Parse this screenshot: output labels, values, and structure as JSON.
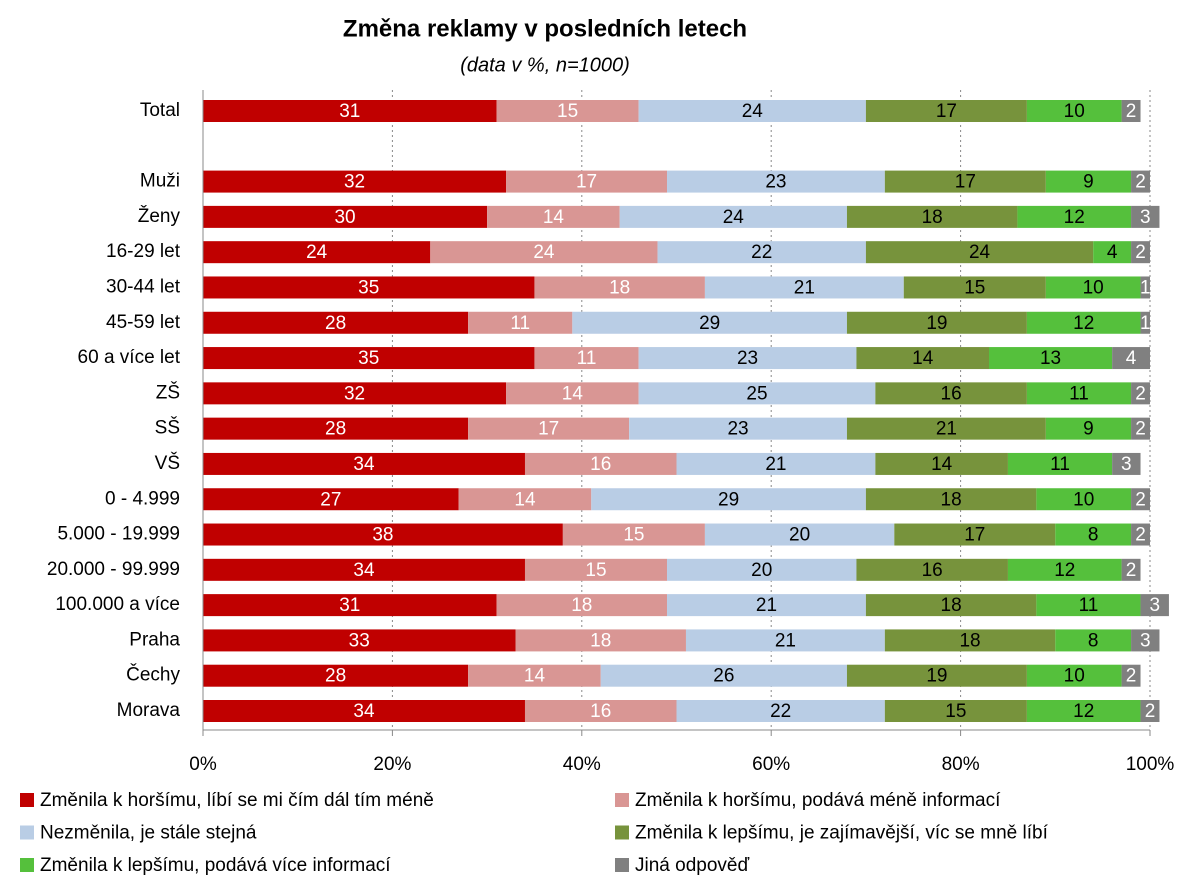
{
  "chart_data": {
    "type": "stacked-bar-horizontal",
    "title": "Změna reklamy v posledních letech",
    "subtitle": "(data v %, n=1000)",
    "categories": [
      "Total",
      null,
      "Muži",
      "Ženy",
      "16-29 let",
      "30-44 let",
      "45-59 let",
      "60 a více let",
      "ZŠ",
      "SŠ",
      "VŠ",
      "0 - 4.999",
      "5.000 - 19.999",
      "20.000 - 99.999",
      "100.000 a více",
      "Praha",
      "Čechy",
      "Morava"
    ],
    "series": [
      {
        "name": "Změnila k horšímu, líbí se mi čím dál tím méně",
        "color": "#c00000",
        "label_color": "#ffffff",
        "values": [
          31,
          null,
          32,
          30,
          24,
          35,
          28,
          35,
          32,
          28,
          34,
          27,
          38,
          34,
          31,
          33,
          28,
          34
        ]
      },
      {
        "name": "Změnila k horšímu, podává méně informací",
        "color": "#d99694",
        "label_color": "#ffffff",
        "values": [
          15,
          null,
          17,
          14,
          24,
          18,
          11,
          11,
          14,
          17,
          16,
          14,
          15,
          15,
          18,
          18,
          14,
          16
        ]
      },
      {
        "name": "Nezměnila, je stále stejná",
        "color": "#b9cde5",
        "label_color": "#000000",
        "values": [
          24,
          null,
          23,
          24,
          22,
          21,
          29,
          23,
          25,
          23,
          21,
          29,
          20,
          20,
          21,
          21,
          26,
          22
        ]
      },
      {
        "name": "Změnila k lepšímu, je zajímavější, víc se mně líbí",
        "color": "#77933c",
        "label_color": "#000000",
        "values": [
          17,
          null,
          17,
          18,
          24,
          15,
          19,
          14,
          16,
          21,
          14,
          18,
          17,
          16,
          18,
          18,
          19,
          15
        ]
      },
      {
        "name": "Změnila k lepšímu, podává více informací",
        "color": "#55c03c",
        "label_color": "#000000",
        "values": [
          10,
          null,
          9,
          12,
          4,
          10,
          12,
          13,
          11,
          9,
          11,
          10,
          8,
          12,
          11,
          8,
          10,
          12
        ]
      },
      {
        "name": "Jiná odpověď",
        "color": "#808080",
        "label_color": "#ffffff",
        "values": [
          2,
          null,
          2,
          3,
          2,
          1,
          1,
          4,
          2,
          2,
          3,
          2,
          2,
          2,
          3,
          3,
          2,
          2
        ]
      }
    ],
    "xlim": [
      0,
      100
    ],
    "xticks": [
      {
        "value": 0,
        "label": "0%"
      },
      {
        "value": 20,
        "label": "20%"
      },
      {
        "value": 40,
        "label": "40%"
      },
      {
        "value": 60,
        "label": "60%"
      },
      {
        "value": 80,
        "label": "80%"
      },
      {
        "value": 100,
        "label": "100%"
      }
    ],
    "grid": true
  }
}
